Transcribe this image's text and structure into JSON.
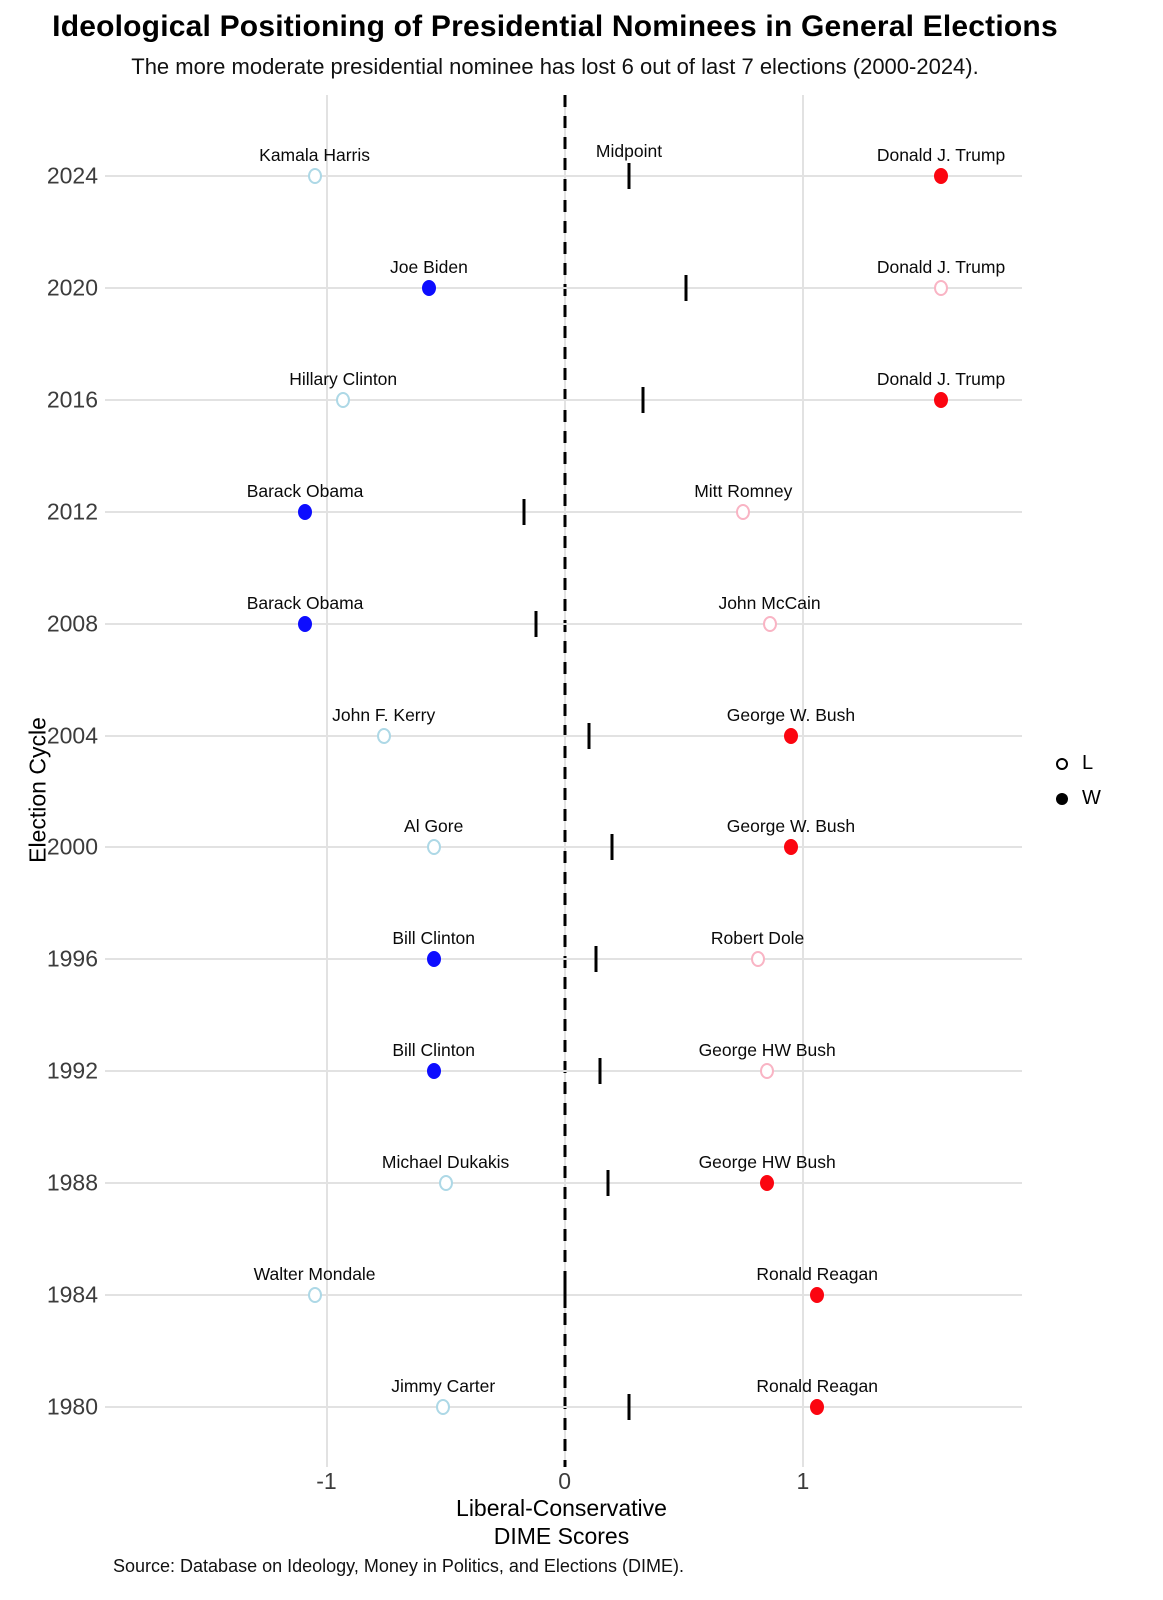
{
  "title": "Ideological Positioning of Presidential Nominees in General Elections",
  "subtitle": "The more moderate presidential nominee has lost 6 out of last 7 elections (2000-2024).",
  "y_axis_label": "Election Cycle",
  "x_axis_label_line1": "Liberal-Conservative",
  "x_axis_label_line2": "DIME Scores",
  "source": "Source: Database on Ideology, Money in Politics, and Elections (DIME).",
  "legend": {
    "loser_label": "L",
    "winner_label": "W"
  },
  "colors": {
    "dem_winner": "#0D0DFF",
    "dem_loser": "#ADD8E6",
    "rep_winner": "#FB0510",
    "rep_loser": "#F9B4C4",
    "midpoint": "#000000",
    "gridline": "#E2E2E2",
    "zero_line": "#000000"
  },
  "chart_data": {
    "type": "scatter",
    "title": "Ideological Positioning of Presidential Nominees in General Elections",
    "subtitle": "The more moderate presidential nominee has lost 6 out of last 7 elections (2000-2024).",
    "xlabel": "Liberal-Conservative DIME Scores",
    "ylabel": "Election Cycle",
    "x_domain": [
      -1.93,
      1.92
    ],
    "x_ticks": [
      -1,
      0,
      1
    ],
    "x_tick_labels": [
      "-1",
      "0",
      "1"
    ],
    "zero_reference_line": 0,
    "grid": true,
    "legend_position": "right",
    "midpoint_label": "Midpoint",
    "elections": [
      {
        "year": "2024",
        "democrat": {
          "name": "Kamala Harris",
          "score": -1.05,
          "result": "L"
        },
        "republican": {
          "name": "Donald J. Trump",
          "score": 1.58,
          "result": "W"
        },
        "midpoint": 0.27,
        "show_midpoint_label": true
      },
      {
        "year": "2020",
        "democrat": {
          "name": "Joe Biden",
          "score": -0.57,
          "result": "W"
        },
        "republican": {
          "name": "Donald J. Trump",
          "score": 1.58,
          "result": "L"
        },
        "midpoint": 0.51,
        "show_midpoint_label": false
      },
      {
        "year": "2016",
        "democrat": {
          "name": "Hillary Clinton",
          "score": -0.93,
          "result": "L"
        },
        "republican": {
          "name": "Donald J. Trump",
          "score": 1.58,
          "result": "W"
        },
        "midpoint": 0.33,
        "show_midpoint_label": false
      },
      {
        "year": "2012",
        "democrat": {
          "name": "Barack Obama",
          "score": -1.09,
          "result": "W"
        },
        "republican": {
          "name": "Mitt Romney",
          "score": 0.75,
          "result": "L"
        },
        "midpoint": -0.17,
        "show_midpoint_label": false
      },
      {
        "year": "2008",
        "democrat": {
          "name": "Barack Obama",
          "score": -1.09,
          "result": "W"
        },
        "republican": {
          "name": "John McCain",
          "score": 0.86,
          "result": "L"
        },
        "midpoint": -0.12,
        "show_midpoint_label": false
      },
      {
        "year": "2004",
        "democrat": {
          "name": "John F. Kerry",
          "score": -0.76,
          "result": "L"
        },
        "republican": {
          "name": "George W. Bush",
          "score": 0.95,
          "result": "W"
        },
        "midpoint": 0.1,
        "show_midpoint_label": false
      },
      {
        "year": "2000",
        "democrat": {
          "name": "Al Gore",
          "score": -0.55,
          "result": "L"
        },
        "republican": {
          "name": "George W. Bush",
          "score": 0.95,
          "result": "W"
        },
        "midpoint": 0.2,
        "show_midpoint_label": false
      },
      {
        "year": "1996",
        "democrat": {
          "name": "Bill Clinton",
          "score": -0.55,
          "result": "W"
        },
        "republican": {
          "name": "Robert Dole",
          "score": 0.81,
          "result": "L"
        },
        "midpoint": 0.13,
        "show_midpoint_label": false
      },
      {
        "year": "1992",
        "democrat": {
          "name": "Bill Clinton",
          "score": -0.55,
          "result": "W"
        },
        "republican": {
          "name": "George HW Bush",
          "score": 0.85,
          "result": "L"
        },
        "midpoint": 0.15,
        "show_midpoint_label": false
      },
      {
        "year": "1988",
        "democrat": {
          "name": "Michael Dukakis",
          "score": -0.5,
          "result": "L"
        },
        "republican": {
          "name": "George HW Bush",
          "score": 0.85,
          "result": "W"
        },
        "midpoint": 0.18,
        "show_midpoint_label": false
      },
      {
        "year": "1984",
        "democrat": {
          "name": "Walter Mondale",
          "score": -1.05,
          "result": "L"
        },
        "republican": {
          "name": "Ronald Reagan",
          "score": 1.06,
          "result": "W"
        },
        "midpoint": 0.0,
        "show_midpoint_label": false
      },
      {
        "year": "1980",
        "democrat": {
          "name": "Jimmy Carter",
          "score": -0.51,
          "result": "L"
        },
        "republican": {
          "name": "Ronald Reagan",
          "score": 1.06,
          "result": "W"
        },
        "midpoint": 0.27,
        "show_midpoint_label": false
      }
    ]
  }
}
